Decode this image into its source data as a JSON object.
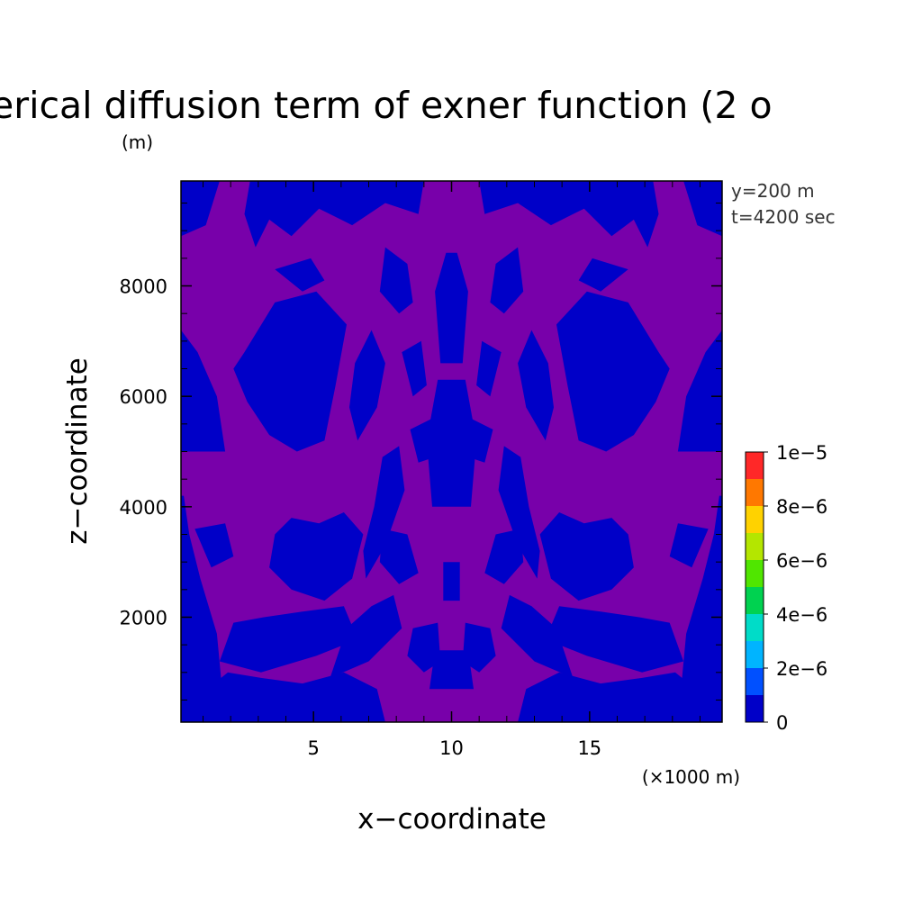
{
  "chart_data": {
    "type": "heatmap",
    "title": "erical diffusion term of exner function (2 o",
    "title_unit": "(m)",
    "xlabel": "x−coordinate",
    "ylabel": "z−coordinate",
    "x_unit": "(×1000 m)",
    "xlim": [
      0.2,
      19.8
    ],
    "ylim": [
      100,
      9900
    ],
    "x_ticks": [
      5,
      10,
      15
    ],
    "x_tick_labels": [
      "5",
      "10",
      "15"
    ],
    "y_ticks": [
      2000,
      4000,
      6000,
      8000
    ],
    "y_tick_labels": [
      "2000",
      "4000",
      "6000",
      "8000"
    ],
    "annotations": [
      "y=200 m",
      "t=4200 sec"
    ],
    "colorbar": {
      "levels": [
        0,
        1e-06,
        2e-06,
        3e-06,
        4e-06,
        5e-06,
        6e-06,
        7e-06,
        8e-06,
        9e-06,
        1e-05
      ],
      "tick_labels": [
        "0",
        "2e−6",
        "4e−6",
        "6e−6",
        "8e−6",
        "1e−5"
      ],
      "colors": [
        "#0000c8",
        "#0050ff",
        "#00b4ff",
        "#00dcc8",
        "#00d250",
        "#50e600",
        "#b4e600",
        "#ffd200",
        "#ff7800",
        "#ff2828"
      ]
    },
    "field_colors": {
      "low": "#0000c8",
      "high": "#7800aa"
    },
    "grid": false
  }
}
